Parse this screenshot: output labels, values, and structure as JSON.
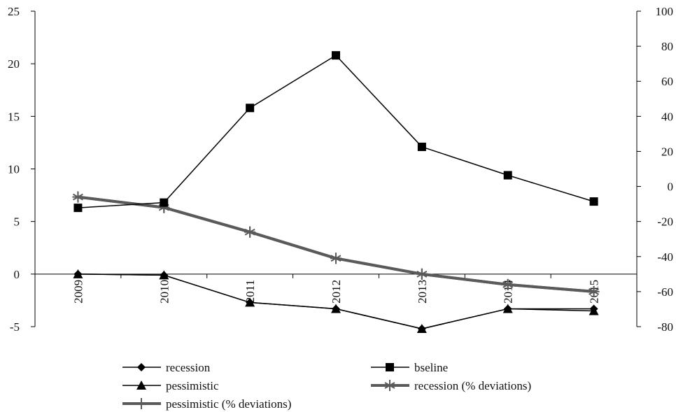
{
  "chart_data": {
    "type": "line",
    "categories": [
      "2009",
      "2010",
      "2011",
      "2012",
      "2013",
      "2014",
      "2015"
    ],
    "category_tick_labels": [
      "2009",
      "2010",
      "2011",
      "2012",
      "2013",
      "2014",
      "2015"
    ],
    "left_axis": {
      "ylim": [
        -5,
        25
      ],
      "ticks": [
        "-5",
        "0",
        "5",
        "10",
        "15",
        "20",
        "25"
      ]
    },
    "right_axis": {
      "ylim": [
        -80,
        100
      ],
      "ticks": [
        "-80",
        "-60",
        "-40",
        "-20",
        "0",
        "20",
        "40",
        "60",
        "80",
        "100"
      ]
    },
    "grid": false,
    "legend_position": "bottom",
    "series": [
      {
        "name": "recession",
        "axis": "left",
        "marker": "diamond",
        "color": "#000000",
        "values": [
          0.0,
          -0.1,
          -2.7,
          -3.3,
          -5.2,
          -3.3,
          -3.3
        ]
      },
      {
        "name": "bseline",
        "axis": "left",
        "marker": "square",
        "color": "#000000",
        "values": [
          6.3,
          6.8,
          15.8,
          20.8,
          12.1,
          9.4,
          6.9
        ]
      },
      {
        "name": "pessimistic",
        "axis": "left",
        "marker": "triangle",
        "color": "#000000",
        "values": [
          0.0,
          -0.1,
          -2.7,
          -3.3,
          -5.2,
          -3.3,
          -3.5
        ]
      },
      {
        "name": "recession (% deviations)",
        "axis": "right",
        "marker": "asterisk",
        "color": "#5a5a5a",
        "values": [
          -6,
          -12,
          -26,
          -41,
          -50,
          -56,
          -60
        ]
      },
      {
        "name": "pessimistic (% deviations)",
        "axis": "right",
        "marker": "plus",
        "color": "#5a5a5a",
        "values": [
          -6,
          -12,
          -26,
          -41,
          -50,
          -56,
          -60
        ]
      }
    ]
  }
}
